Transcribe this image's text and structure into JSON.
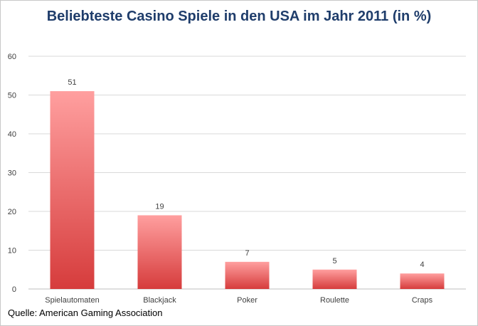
{
  "chart_data": {
    "type": "bar",
    "title": "Beliebteste Casino Spiele in den USA im Jahr 2011 (in %)",
    "categories": [
      "Spielautomaten",
      "Blackjack",
      "Poker",
      "Roulette",
      "Craps"
    ],
    "values": [
      51,
      19,
      7,
      5,
      4
    ],
    "data_labels": [
      "51",
      "19",
      "7",
      "5",
      "4"
    ],
    "ylim": [
      0,
      60
    ],
    "yticks": [
      0,
      10,
      20,
      30,
      40,
      50,
      60
    ],
    "xlabel": "",
    "ylabel": "",
    "grid": true,
    "legend": "none",
    "colors": {
      "bar_top": "#ff9f9f",
      "bar_bottom": "#d63c3c",
      "grid": "#d9d9d9",
      "title": "#1f3d6b"
    }
  },
  "source": "Quelle: American Gaming Association"
}
